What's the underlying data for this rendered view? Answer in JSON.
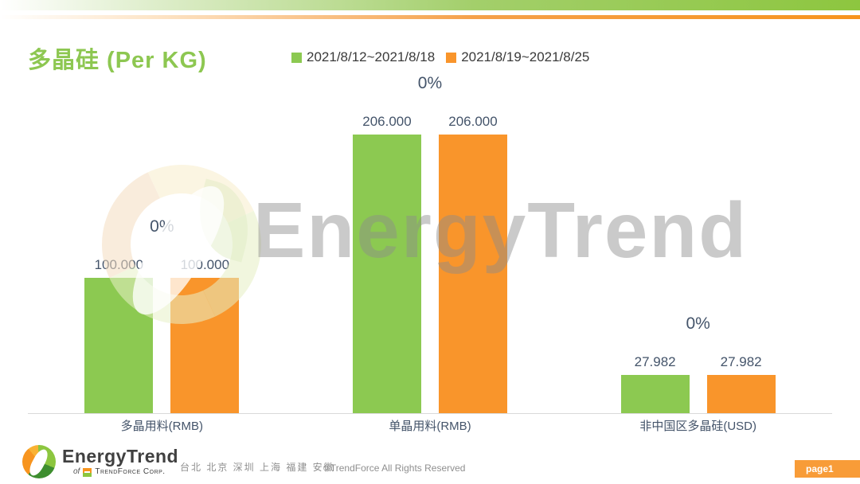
{
  "header": {
    "title": "多晶硅 (Per KG)"
  },
  "legend": [
    {
      "label": "2021/8/12~2021/8/18",
      "color": "#8CC951"
    },
    {
      "label": "2021/8/19~2021/8/25",
      "color": "#F9952B"
    }
  ],
  "chart_data": {
    "type": "bar",
    "title": "多晶硅 (Per KG)",
    "categories": [
      "多晶用料(RMB)",
      "单晶用料(RMB)",
      "非中国区多晶硅(USD)"
    ],
    "series": [
      {
        "name": "2021/8/12~2021/8/18",
        "color": "#8CC951",
        "values": [
          100.0,
          206.0,
          27.982
        ],
        "labels": [
          "100.000",
          "206.000",
          "27.982"
        ]
      },
      {
        "name": "2021/8/19~2021/8/25",
        "color": "#F9952B",
        "values": [
          100.0,
          206.0,
          27.982
        ],
        "labels": [
          "100.000",
          "206.000",
          "27.982"
        ]
      }
    ],
    "change_labels": [
      "0%",
      "0%",
      "0%"
    ],
    "xlabel": "",
    "ylabel": "",
    "ylim": [
      0,
      210
    ],
    "grid": false,
    "legend_position": "top"
  },
  "watermark": {
    "text": "EnergyTrend"
  },
  "footer": {
    "logo_title": "EnergyTrend",
    "logo_subtitle_prefix": "of",
    "logo_subtitle": "TrendForce Corp.",
    "cities": "台北 北京 深圳 上海 福建 安徽",
    "copyright": "©TrendForce All Rights Reserved",
    "page_label": "page1"
  },
  "colors": {
    "accent_green": "#8DC63F",
    "accent_orange": "#F7941E",
    "bar_green": "#8CC951",
    "bar_orange": "#F9952B",
    "label_text": "#44546A",
    "title_green": "#8DC751",
    "page_box_orange": "#F89C38"
  }
}
